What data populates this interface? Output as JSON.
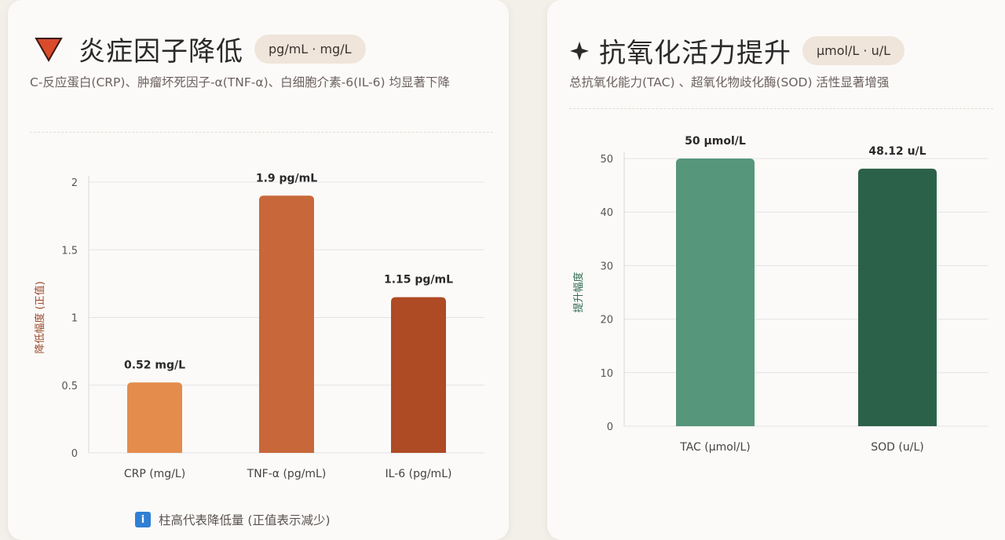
{
  "left_card": {
    "title": "炎症因子降低",
    "unit_pill": "pg/mL · mg/L",
    "description": "C-反应蛋白(CRP)、肿瘤坏死因子-α(TNF-α)、白细胞介素-6(IL-6) 均显著下降",
    "legend_text": "柱高代表降低量 (正值表示减少)",
    "icon": "down-triangle-icon",
    "accent": "#d94b2b"
  },
  "right_card": {
    "title": "抗氧化活力提升",
    "unit_pill": "μmol/L · u/L",
    "description": "总抗氧化能力(TAC) 、超氧化物歧化酶(SOD) 活性显著增强",
    "icon": "sparkle-icon"
  },
  "chart_data": [
    {
      "type": "bar",
      "categories": [
        "CRP (mg/L)",
        "TNF-α (pg/mL)",
        "IL-6 (pg/mL)"
      ],
      "values": [
        0.52,
        1.9,
        1.15
      ],
      "data_labels": [
        "0.52 mg/L",
        "1.9 pg/mL",
        "1.15 pg/mL"
      ],
      "colors": [
        "#e48c4c",
        "#c8683a",
        "#ae4a24"
      ],
      "ylabel": "降低幅度 (正值)",
      "ylim": [
        0,
        2
      ],
      "yticks": [
        0,
        0.5,
        1,
        1.5,
        2
      ],
      "ytick_labels": [
        "0",
        "0.5",
        "1",
        "1.5",
        "2"
      ],
      "grid": true
    },
    {
      "type": "bar",
      "categories": [
        "TAC (μmol/L)",
        "SOD (u/L)"
      ],
      "values": [
        50,
        48.12
      ],
      "data_labels": [
        "50 μmol/L",
        "48.12 u/L"
      ],
      "colors": [
        "#56967a",
        "#2b6149"
      ],
      "ylabel": "提升幅度",
      "ylim": [
        0,
        50
      ],
      "yticks": [
        0,
        10,
        20,
        30,
        40,
        50
      ],
      "ytick_labels": [
        "0",
        "10",
        "20",
        "30",
        "40",
        "50"
      ],
      "grid": true
    }
  ]
}
